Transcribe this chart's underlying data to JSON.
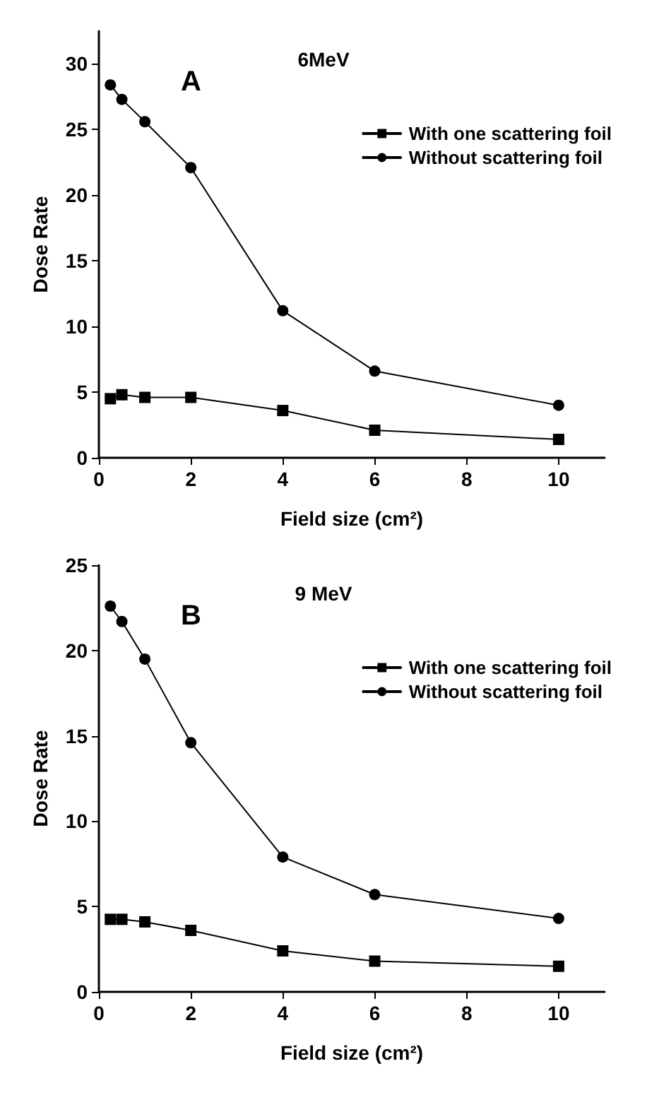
{
  "chart_data": [
    {
      "type": "line",
      "title": "6MeV",
      "annotations": [
        "A"
      ],
      "xlabel": "Field size (cm²)",
      "ylabel": "Dose Rate",
      "x": [
        0.25,
        0.5,
        1,
        2,
        4,
        6,
        10
      ],
      "xlim": [
        0,
        11
      ],
      "xticks": [
        0,
        2,
        4,
        6,
        8,
        10
      ],
      "ylim": [
        0,
        32.5
      ],
      "yticks": [
        0,
        5,
        10,
        15,
        20,
        25,
        30
      ],
      "grid": false,
      "legend": "top right",
      "line_style": "solid",
      "series": [
        {
          "name": "With one scattering foil",
          "color": "#000000",
          "marker": "square",
          "values": [
            4.5,
            4.8,
            4.6,
            4.6,
            3.6,
            2.1,
            1.4
          ]
        },
        {
          "name": "Without scattering foil",
          "color": "#000000",
          "marker": "circle",
          "values": [
            28.4,
            27.3,
            25.6,
            22.1,
            11.2,
            6.6,
            4.0
          ]
        }
      ]
    },
    {
      "type": "line",
      "title": "9 MeV",
      "annotations": [
        "B"
      ],
      "xlabel": "Field size (cm²)",
      "ylabel": "Dose Rate",
      "x": [
        0.25,
        0.5,
        1,
        2,
        4,
        6,
        10
      ],
      "xlim": [
        0,
        11
      ],
      "xticks": [
        0,
        2,
        4,
        6,
        8,
        10
      ],
      "ylim": [
        0,
        25
      ],
      "yticks": [
        0,
        5,
        10,
        15,
        20,
        25
      ],
      "grid": false,
      "legend": "top right",
      "line_style": "solid",
      "series": [
        {
          "name": "With one scattering foil",
          "color": "#000000",
          "marker": "square",
          "values": [
            4.25,
            4.25,
            4.1,
            3.6,
            2.4,
            1.8,
            1.5
          ]
        },
        {
          "name": "Without scattering foil",
          "color": "#000000",
          "marker": "circle",
          "values": [
            22.6,
            21.7,
            19.5,
            14.6,
            7.9,
            5.7,
            4.3
          ]
        }
      ]
    }
  ]
}
